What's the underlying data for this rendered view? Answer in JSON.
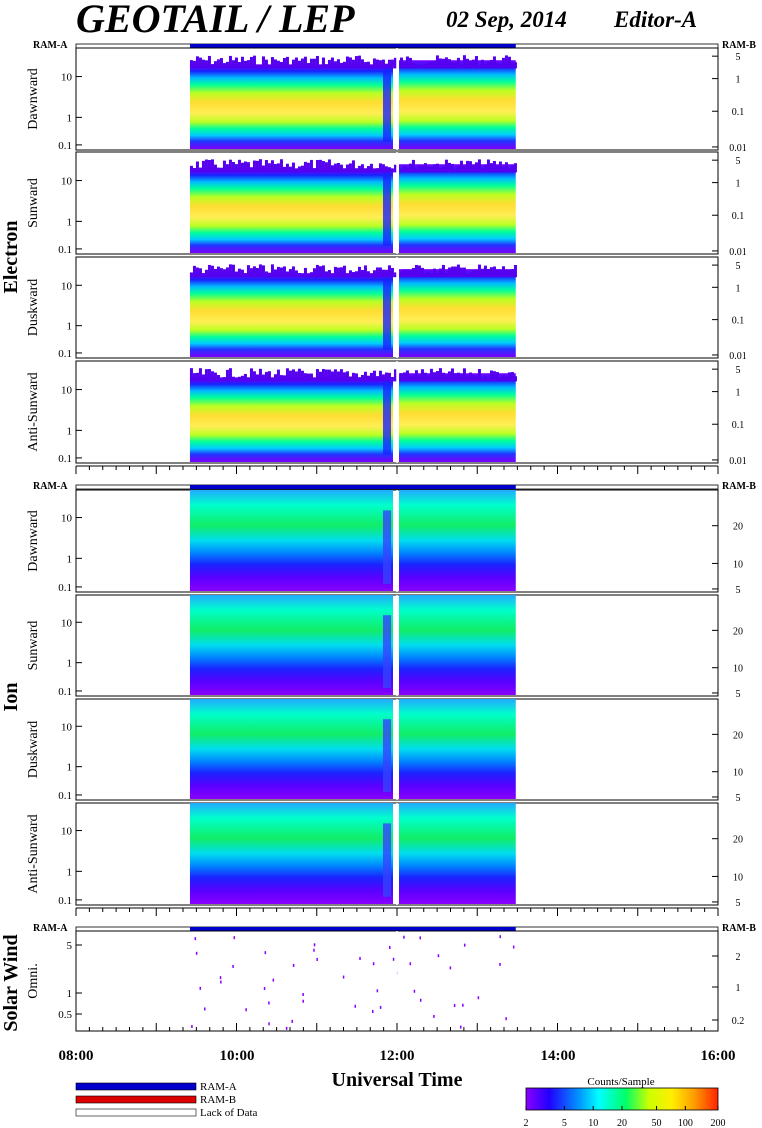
{
  "header": {
    "title": "GEOTAIL / LEP",
    "date": "02 Sep, 2014",
    "editor": "Editor-A"
  },
  "chart_data": {
    "type": "heatmap",
    "xlabel": "Universal Time",
    "x_ticks": [
      "08:00",
      "10:00",
      "12:00",
      "14:00",
      "16:00"
    ],
    "x_range_hours": [
      8,
      16
    ],
    "data_coverage_hours": [
      9.42,
      13.48
    ],
    "data_gap_hour": 12.0,
    "bar_labels": {
      "left": "RAM-A",
      "right": "RAM-B"
    },
    "groups": [
      {
        "name": "Electron",
        "left_ticks": [
          "10",
          "1",
          "0.1"
        ],
        "right_ticks": [
          "5",
          "1",
          "0.1",
          "0.01"
        ],
        "panels": [
          "Dawnward",
          "Sunward",
          "Duskward",
          "Anti-Sunward"
        ]
      },
      {
        "name": "Ion",
        "left_ticks": [
          "10",
          "1",
          "0.1"
        ],
        "right_ticks": [
          "20",
          "10",
          "5"
        ],
        "panels": [
          "Dawnward",
          "Sunward",
          "Duskward",
          "Anti-Sunward"
        ]
      },
      {
        "name": "Solar Wind",
        "left_ticks": [
          "5",
          "1",
          "0.5"
        ],
        "right_ticks": [
          "2",
          "1",
          "0.2"
        ],
        "panels": [
          "Omni."
        ]
      }
    ],
    "legend": {
      "items": [
        {
          "label": "RAM-A",
          "color": "#0000cc"
        },
        {
          "label": "RAM-B",
          "color": "#dd0000"
        },
        {
          "label": "Lack of Data",
          "color": "#ffffff"
        }
      ]
    },
    "colorbar": {
      "title": "Counts/Sample",
      "ticks": [
        "2",
        "5",
        "10",
        "20",
        "50",
        "100",
        "200"
      ],
      "colors": [
        "#8a00ff",
        "#2200ff",
        "#0099ff",
        "#00ffff",
        "#00ff66",
        "#ccff00",
        "#ffee00",
        "#ff9900",
        "#ff2200"
      ]
    }
  }
}
